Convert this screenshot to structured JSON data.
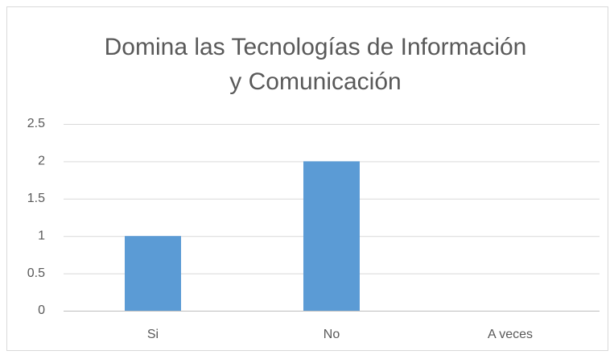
{
  "chart_data": {
    "type": "bar",
    "title": [
      "Domina las Tecnologías de Información",
      "y Comunicación"
    ],
    "categories": [
      "Si",
      "No",
      "A veces"
    ],
    "values": [
      1,
      2,
      0
    ],
    "color": "#5b9bd5",
    "ylim": [
      0,
      2.5
    ],
    "yticks": [
      0,
      0.5,
      1,
      1.5,
      2,
      2.5
    ],
    "grid": true
  }
}
